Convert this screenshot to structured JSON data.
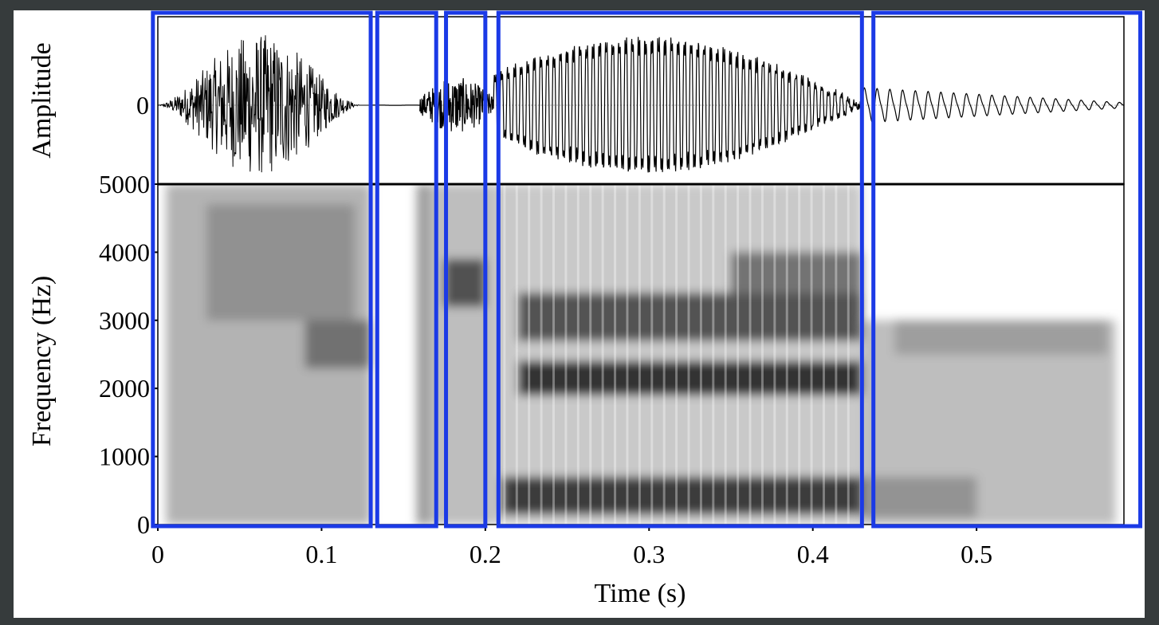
{
  "chart_data": {
    "type": "waveform-spectrogram",
    "waveform": {
      "ylabel": "Amplitude",
      "yticks": [
        "0"
      ],
      "segments": [
        {
          "t_start": 0.0,
          "t_end": 0.13,
          "kind": "frication",
          "peak_amplitude": 0.9
        },
        {
          "t_start": 0.13,
          "t_end": 0.16,
          "kind": "closure",
          "peak_amplitude": 0.03
        },
        {
          "t_start": 0.16,
          "t_end": 0.205,
          "kind": "burst",
          "peak_amplitude": 0.35
        },
        {
          "t_start": 0.205,
          "t_end": 0.43,
          "kind": "voiced",
          "peak_amplitude": 1.0
        },
        {
          "t_start": 0.43,
          "t_end": 0.59,
          "kind": "voiced-decay",
          "peak_amplitude": 0.25
        }
      ]
    },
    "spectrogram": {
      "xlabel": "Time (s)",
      "ylabel": "Frequency (Hz)",
      "xlim": [
        0,
        0.59
      ],
      "ylim": [
        0,
        5000
      ],
      "xticks": [
        {
          "value": 0,
          "label": "0"
        },
        {
          "value": 0.1,
          "label": "0.1"
        },
        {
          "value": 0.2,
          "label": "0.2"
        },
        {
          "value": 0.3,
          "label": "0.3"
        },
        {
          "value": 0.4,
          "label": "0.4"
        },
        {
          "value": 0.5,
          "label": "0.5"
        }
      ],
      "yticks": [
        {
          "value": 0,
          "label": "0"
        },
        {
          "value": 1000,
          "label": "1000"
        },
        {
          "value": 2000,
          "label": "2000"
        },
        {
          "value": 3000,
          "label": "3000"
        },
        {
          "value": 4000,
          "label": "4000"
        },
        {
          "value": 5000,
          "label": "5000"
        }
      ],
      "energy_regions": [
        {
          "t_start": 0.005,
          "t_end": 0.13,
          "f_low": 0,
          "f_high": 5000,
          "darkness": 0.35
        },
        {
          "t_start": 0.03,
          "t_end": 0.12,
          "f_low": 3000,
          "f_high": 4700,
          "darkness": 0.45
        },
        {
          "t_start": 0.09,
          "t_end": 0.13,
          "f_low": 2300,
          "f_high": 3000,
          "darkness": 0.6
        },
        {
          "t_start": 0.158,
          "t_end": 0.166,
          "f_low": 0,
          "f_high": 5000,
          "darkness": 0.45
        },
        {
          "t_start": 0.166,
          "t_end": 0.205,
          "f_low": 0,
          "f_high": 5000,
          "darkness": 0.3
        },
        {
          "t_start": 0.175,
          "t_end": 0.2,
          "f_low": 3200,
          "f_high": 3900,
          "darkness": 0.75
        },
        {
          "t_start": 0.205,
          "t_end": 0.43,
          "f_low": 0,
          "f_high": 5000,
          "darkness": 0.25
        },
        {
          "t_start": 0.21,
          "t_end": 0.43,
          "f_low": 150,
          "f_high": 700,
          "darkness": 0.85
        },
        {
          "t_start": 0.22,
          "t_end": 0.43,
          "f_low": 1900,
          "f_high": 2400,
          "darkness": 0.9
        },
        {
          "t_start": 0.22,
          "t_end": 0.43,
          "f_low": 2700,
          "f_high": 3400,
          "darkness": 0.75
        },
        {
          "t_start": 0.35,
          "t_end": 0.43,
          "f_low": 3400,
          "f_high": 4000,
          "darkness": 0.6
        },
        {
          "t_start": 0.43,
          "t_end": 0.585,
          "f_low": 0,
          "f_high": 3000,
          "darkness": 0.3
        },
        {
          "t_start": 0.45,
          "t_end": 0.58,
          "f_low": 2500,
          "f_high": 3000,
          "darkness": 0.4
        },
        {
          "t_start": 0.43,
          "t_end": 0.5,
          "f_low": 100,
          "f_high": 700,
          "darkness": 0.45
        }
      ]
    },
    "annotations": {
      "segment_boxes_color": "#1b3ae6",
      "segment_boxes": [
        {
          "t_start": -0.003,
          "t_end": 0.13
        },
        {
          "t_start": 0.134,
          "t_end": 0.17
        },
        {
          "t_start": 0.176,
          "t_end": 0.2
        },
        {
          "t_start": 0.208,
          "t_end": 0.43
        },
        {
          "t_start": 0.437,
          "t_end": 0.6
        }
      ]
    }
  }
}
